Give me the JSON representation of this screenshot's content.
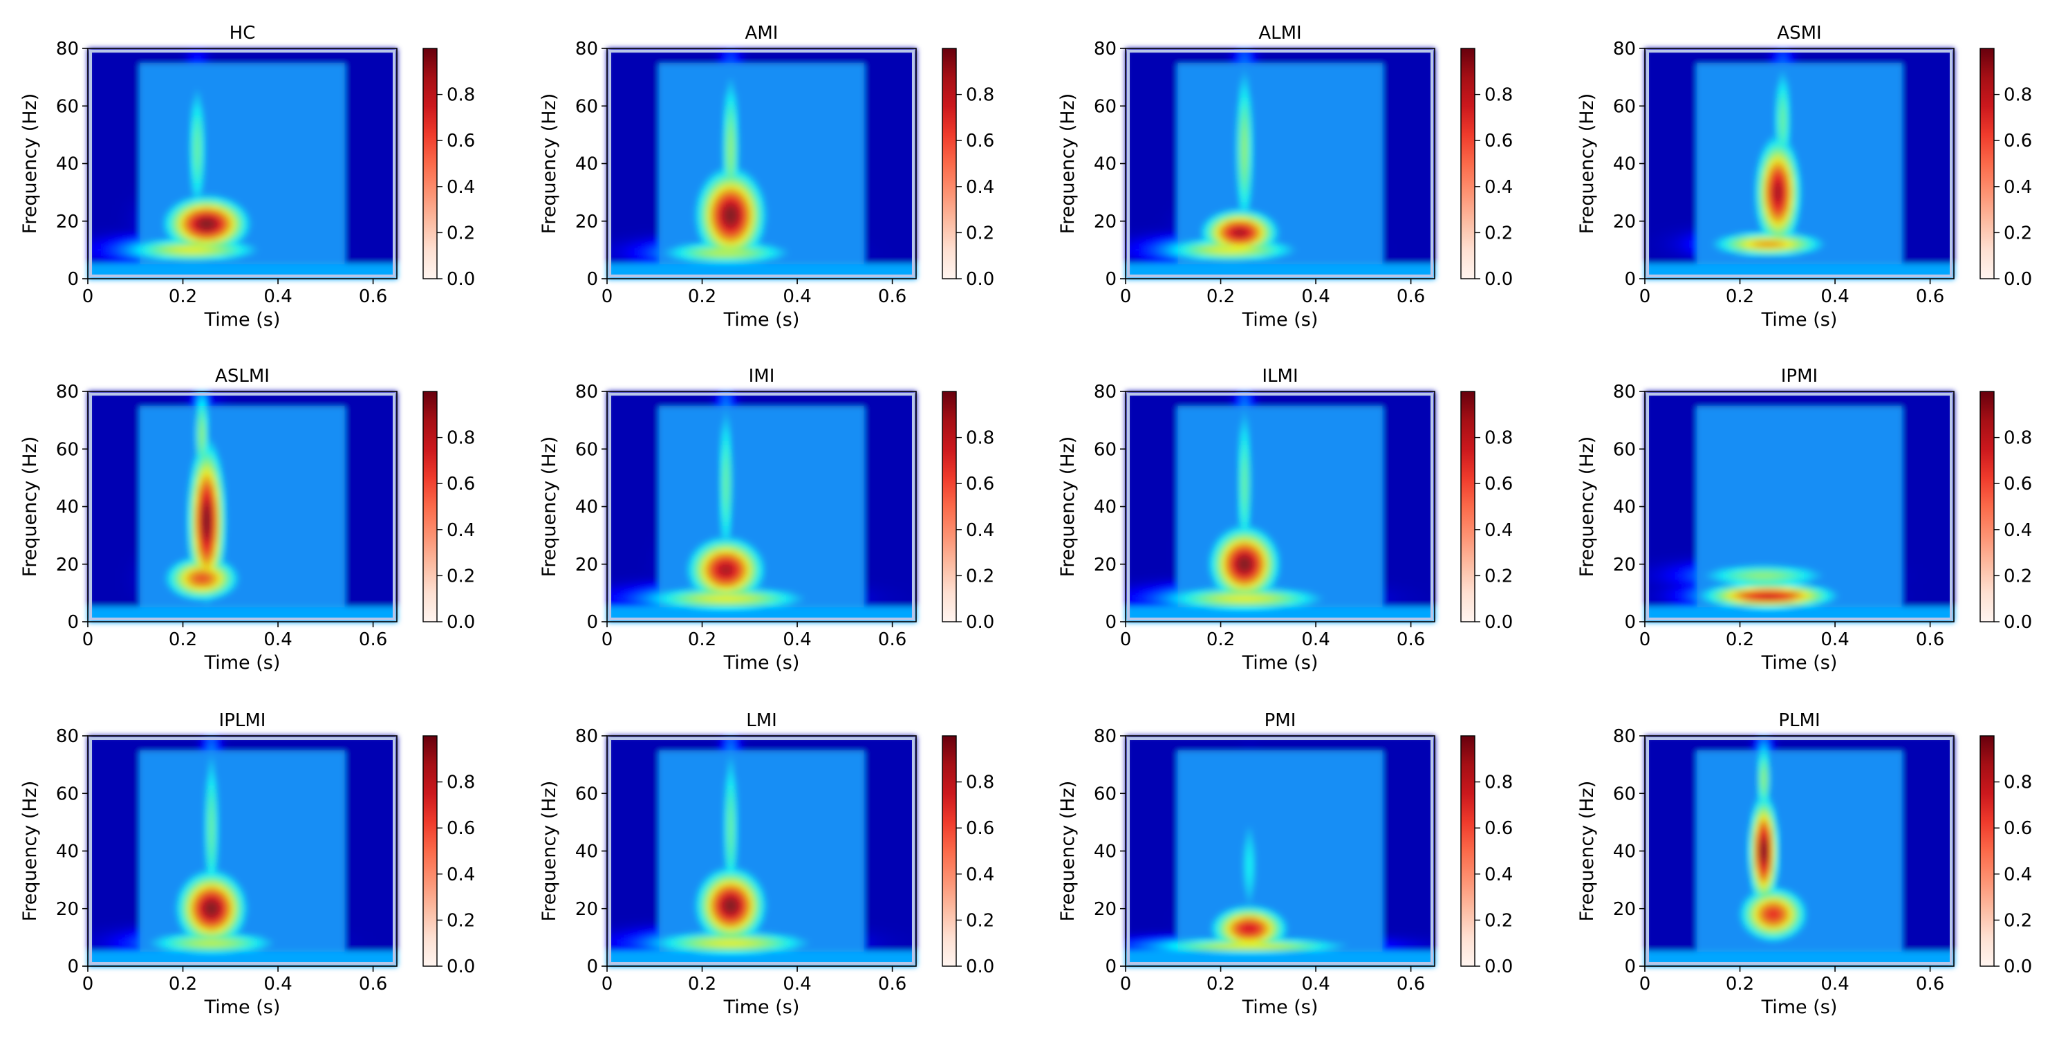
{
  "chart_data": {
    "type": "heatmap",
    "layout": {
      "rows": 3,
      "cols": 4
    },
    "shared": {
      "xlabel": "Time (s)",
      "ylabel": "Frequency (Hz)",
      "xlim": [
        0,
        0.65
      ],
      "ylim": [
        0,
        80
      ],
      "xticks": [
        0,
        0.2,
        0.4,
        0.6
      ],
      "xtick_labels": [
        "0",
        "0.2",
        "0.4",
        "0.6"
      ],
      "yticks": [
        0,
        20,
        40,
        60,
        80
      ],
      "ytick_labels": [
        "0",
        "20",
        "40",
        "60",
        "80"
      ],
      "colorbar": {
        "range": [
          0,
          1
        ],
        "ticks": [
          0,
          0.2,
          0.4,
          0.6,
          0.8
        ],
        "tick_labels": [
          "0.0",
          "0.2",
          "0.4",
          "0.6",
          "0.8"
        ],
        "colormap": "Reds"
      },
      "background_colormap": "jet",
      "overlay_time_range": [
        0.11,
        0.54
      ],
      "overlay_freq_range": [
        5,
        75
      ]
    },
    "panels": [
      {
        "title": "HC",
        "hot_spots": [
          {
            "t": 0.25,
            "f": 19,
            "w": 0.055,
            "h": 6,
            "v": 1.0
          },
          {
            "t": 0.22,
            "f": 10,
            "w": 0.1,
            "h": 3,
            "v": 0.6
          },
          {
            "t": 0.23,
            "f": 45,
            "w": 0.015,
            "h": 18,
            "v": 0.45
          }
        ]
      },
      {
        "title": "AMI",
        "hot_spots": [
          {
            "t": 0.26,
            "f": 22,
            "w": 0.045,
            "h": 10,
            "v": 1.0
          },
          {
            "t": 0.26,
            "f": 45,
            "w": 0.015,
            "h": 20,
            "v": 0.5
          },
          {
            "t": 0.25,
            "f": 9,
            "w": 0.1,
            "h": 3,
            "v": 0.55
          }
        ]
      },
      {
        "title": "ALMI",
        "hot_spots": [
          {
            "t": 0.24,
            "f": 16,
            "w": 0.05,
            "h": 5,
            "v": 0.95
          },
          {
            "t": 0.25,
            "f": 45,
            "w": 0.015,
            "h": 22,
            "v": 0.5
          },
          {
            "t": 0.22,
            "f": 10,
            "w": 0.1,
            "h": 3,
            "v": 0.6
          }
        ]
      },
      {
        "title": "ASMI",
        "hot_spots": [
          {
            "t": 0.28,
            "f": 30,
            "w": 0.03,
            "h": 12,
            "v": 0.95
          },
          {
            "t": 0.26,
            "f": 12,
            "w": 0.08,
            "h": 3,
            "v": 0.7
          },
          {
            "t": 0.29,
            "f": 55,
            "w": 0.015,
            "h": 15,
            "v": 0.45
          }
        ]
      },
      {
        "title": "ASLMI",
        "hot_spots": [
          {
            "t": 0.25,
            "f": 35,
            "w": 0.025,
            "h": 17,
            "v": 1.0
          },
          {
            "t": 0.24,
            "f": 15,
            "w": 0.05,
            "h": 5,
            "v": 0.8
          },
          {
            "t": 0.24,
            "f": 65,
            "w": 0.012,
            "h": 12,
            "v": 0.5
          }
        ]
      },
      {
        "title": "IMI",
        "hot_spots": [
          {
            "t": 0.25,
            "f": 18,
            "w": 0.05,
            "h": 7,
            "v": 0.95
          },
          {
            "t": 0.25,
            "f": 48,
            "w": 0.013,
            "h": 22,
            "v": 0.45
          },
          {
            "t": 0.25,
            "f": 8,
            "w": 0.12,
            "h": 3,
            "v": 0.6
          }
        ]
      },
      {
        "title": "ILMI",
        "hot_spots": [
          {
            "t": 0.25,
            "f": 20,
            "w": 0.045,
            "h": 8,
            "v": 1.0
          },
          {
            "t": 0.25,
            "f": 48,
            "w": 0.013,
            "h": 22,
            "v": 0.45
          },
          {
            "t": 0.25,
            "f": 8,
            "w": 0.12,
            "h": 3,
            "v": 0.6
          }
        ]
      },
      {
        "title": "IPMI",
        "hot_spots": [
          {
            "t": 0.26,
            "f": 9,
            "w": 0.09,
            "h": 3,
            "v": 0.9
          },
          {
            "t": 0.25,
            "f": 16,
            "w": 0.1,
            "h": 3,
            "v": 0.5
          }
        ]
      },
      {
        "title": "IPLMI",
        "hot_spots": [
          {
            "t": 0.26,
            "f": 20,
            "w": 0.045,
            "h": 8,
            "v": 1.0
          },
          {
            "t": 0.26,
            "f": 48,
            "w": 0.013,
            "h": 22,
            "v": 0.45
          },
          {
            "t": 0.26,
            "f": 8,
            "w": 0.1,
            "h": 3,
            "v": 0.55
          }
        ]
      },
      {
        "title": "LMI",
        "hot_spots": [
          {
            "t": 0.26,
            "f": 21,
            "w": 0.045,
            "h": 8,
            "v": 1.0
          },
          {
            "t": 0.26,
            "f": 48,
            "w": 0.013,
            "h": 22,
            "v": 0.45
          },
          {
            "t": 0.26,
            "f": 8,
            "w": 0.12,
            "h": 3,
            "v": 0.6
          }
        ]
      },
      {
        "title": "PMI",
        "hot_spots": [
          {
            "t": 0.26,
            "f": 13,
            "w": 0.05,
            "h": 5,
            "v": 0.9
          },
          {
            "t": 0.26,
            "f": 7,
            "w": 0.15,
            "h": 2,
            "v": 0.6
          },
          {
            "t": 0.26,
            "f": 35,
            "w": 0.015,
            "h": 15,
            "v": 0.35
          }
        ]
      },
      {
        "title": "PLMI",
        "hot_spots": [
          {
            "t": 0.25,
            "f": 40,
            "w": 0.02,
            "h": 12,
            "v": 1.0
          },
          {
            "t": 0.27,
            "f": 18,
            "w": 0.045,
            "h": 6,
            "v": 0.85
          },
          {
            "t": 0.25,
            "f": 65,
            "w": 0.012,
            "h": 10,
            "v": 0.5
          }
        ]
      }
    ]
  }
}
